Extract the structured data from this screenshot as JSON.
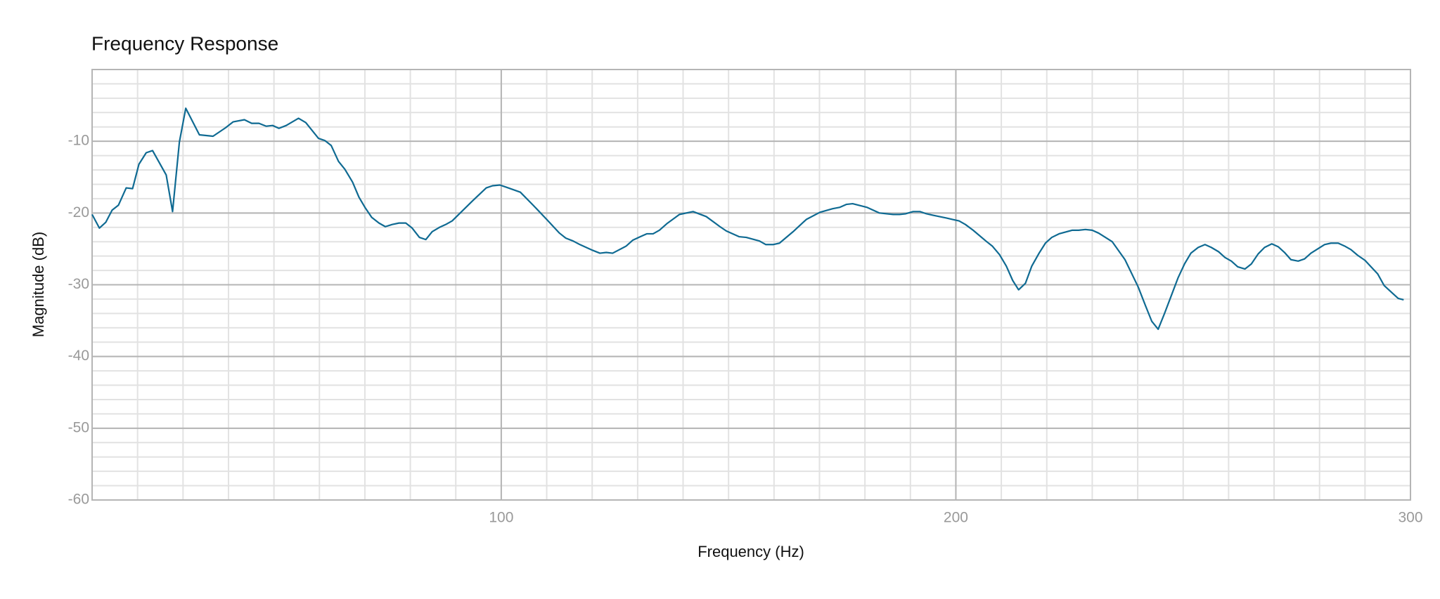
{
  "chart_data": {
    "type": "line",
    "title": "Frequency Response",
    "x_label": "Frequency (Hz)",
    "y_label": "Magnitude (dB)",
    "xlim": [
      10,
      300
    ],
    "ylim": [
      -60,
      0
    ],
    "xticks": [
      100,
      200,
      300
    ],
    "yticks": [
      -60,
      -50,
      -40,
      -30,
      -20,
      -10
    ],
    "grid": true,
    "x": [
      10,
      11.6,
      13,
      14.4,
      15.8,
      17.5,
      18.9,
      20.3,
      21.9,
      23.3,
      26.3,
      27.7,
      29.2,
      30.6,
      33.6,
      36.6,
      39.4,
      41,
      43.5,
      45.1,
      46.7,
      48.3,
      49.7,
      51.1,
      52.7,
      55.4,
      57,
      59.8,
      61.2,
      62.6,
      64.2,
      65.6,
      67.3,
      68.7,
      70.1,
      71.5,
      73.1,
      74.5,
      76,
      77.5,
      79,
      80.4,
      82,
      83.4,
      84.8,
      86.4,
      87.8,
      89.2,
      93.7,
      96.7,
      98.1,
      99.7,
      101.1,
      104.2,
      107,
      110,
      112.8,
      114.2,
      115.8,
      117.3,
      120.1,
      121.7,
      123.1,
      124.5,
      127.5,
      128.9,
      130.6,
      132,
      133.4,
      134.8,
      136.4,
      139.2,
      142.2,
      145.1,
      148.1,
      149.5,
      152.3,
      153.9,
      156.8,
      158.2,
      159.8,
      161.2,
      164.2,
      167.1,
      170.1,
      172.9,
      174.5,
      175.9,
      177.3,
      180.4,
      183.2,
      186.2,
      187.6,
      189,
      190.6,
      192.1,
      193.5,
      194.9,
      197.9,
      199.3,
      200.7,
      202.1,
      203.8,
      206.6,
      208,
      209.6,
      211.1,
      212.5,
      213.8,
      215.3,
      216.7,
      218.3,
      219.7,
      221.1,
      222.7,
      225.6,
      227,
      228.5,
      230,
      231.4,
      234.4,
      237.2,
      240.1,
      241.7,
      243.1,
      244.5,
      245.9,
      247.4,
      248.9,
      250.3,
      251.7,
      253.3,
      254.8,
      256.2,
      257.8,
      259.2,
      260.6,
      262,
      263.6,
      265,
      266.5,
      267.9,
      269.5,
      270.9,
      272.3,
      273.7,
      275.3,
      276.7,
      278.1,
      281.1,
      282.5,
      284.1,
      285.5,
      286.9,
      288.4,
      290,
      292.8,
      294.2,
      295.9,
      297.3,
      298.5
    ],
    "series": [
      {
        "color": "#0f6a92",
        "values": [
          -20.2,
          -22.1,
          -21.3,
          -19.6,
          -18.9,
          -16.5,
          -16.6,
          -13.2,
          -11.6,
          -11.3,
          -14.7,
          -19.8,
          -10.1,
          -5.4,
          -9.1,
          -9.3,
          -8.1,
          -7.3,
          -7.0,
          -7.5,
          -7.5,
          -7.9,
          -7.8,
          -8.2,
          -7.8,
          -6.8,
          -7.4,
          -9.6,
          -9.9,
          -10.6,
          -12.8,
          -13.9,
          -15.7,
          -17.8,
          -19.3,
          -20.6,
          -21.4,
          -21.9,
          -21.6,
          -21.4,
          -21.4,
          -22.1,
          -23.4,
          -23.7,
          -22.6,
          -22.0,
          -21.6,
          -21.1,
          -18.3,
          -16.5,
          -16.2,
          -16.1,
          -16.4,
          -17.1,
          -18.9,
          -20.9,
          -22.8,
          -23.5,
          -23.9,
          -24.4,
          -25.2,
          -25.6,
          -25.5,
          -25.6,
          -24.6,
          -23.8,
          -23.3,
          -22.9,
          -22.9,
          -22.4,
          -21.5,
          -20.2,
          -19.8,
          -20.5,
          -21.9,
          -22.5,
          -23.3,
          -23.4,
          -23.9,
          -24.4,
          -24.4,
          -24.2,
          -22.6,
          -20.9,
          -19.9,
          -19.4,
          -19.2,
          -18.8,
          -18.7,
          -19.2,
          -20.0,
          -20.2,
          -20.2,
          -20.1,
          -19.8,
          -19.8,
          -20.1,
          -20.3,
          -20.7,
          -20.9,
          -21.1,
          -21.6,
          -22.4,
          -23.9,
          -24.6,
          -25.8,
          -27.4,
          -29.4,
          -30.7,
          -29.8,
          -27.4,
          -25.6,
          -24.2,
          -23.4,
          -22.9,
          -22.4,
          -22.4,
          -22.3,
          -22.4,
          -22.8,
          -24.0,
          -26.5,
          -30.3,
          -32.9,
          -35.1,
          -36.2,
          -34.0,
          -31.5,
          -29.0,
          -27.1,
          -25.6,
          -24.8,
          -24.4,
          -24.8,
          -25.4,
          -26.2,
          -26.7,
          -27.5,
          -27.8,
          -27.1,
          -25.7,
          -24.8,
          -24.3,
          -24.7,
          -25.5,
          -26.5,
          -26.7,
          -26.4,
          -25.6,
          -24.4,
          -24.2,
          -24.2,
          -24.6,
          -25.1,
          -25.9,
          -26.6,
          -28.5,
          -30.1,
          -31.1,
          -31.9,
          -32.1
        ]
      }
    ]
  }
}
